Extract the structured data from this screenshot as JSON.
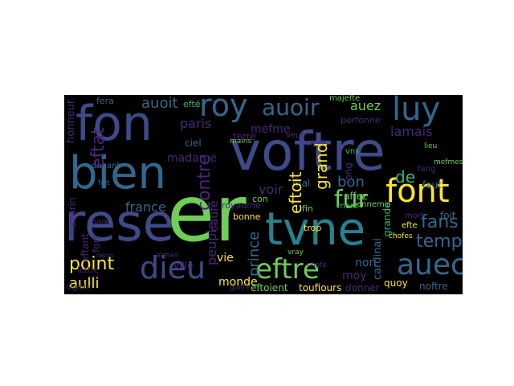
{
  "palette": {
    "background": "#000000",
    "page": "#ffffff",
    "violet": "#482878",
    "indigo": "#3e4a89",
    "blue": "#31688e",
    "teal": "#26828e",
    "green": "#35b779",
    "lime": "#6ece58",
    "yellow": "#fde725",
    "purple": "#440154"
  },
  "words": {
    "reserve_partial": "rese",
    "er": "er",
    "tvne": "tvne",
    "voftre": "voftre",
    "fon": "fon",
    "bien": "bien",
    "roy": "roy",
    "luy": "luy",
    "auoir": "auoir",
    "font": "font",
    "dieu": "dieu",
    "eftre": "eftre",
    "auec": "auec",
    "point": "point",
    "fur": "fur",
    "temps": "temps",
    "fans": "fans",
    "paris": "paris",
    "france": "france",
    "auoit": "auoit",
    "mefme": "mefme",
    "auez": "auez",
    "iamais": "iamais",
    "madame": "madame",
    "eftat": "eftat",
    "contre": "contre",
    "grand": "grand",
    "bon": "bon",
    "de": "de",
    "voir": "voir",
    "eftoit": "eftoit",
    "aulli": "aulli",
    "prince": "prince",
    "peuple": "peuple",
    "monde": "monde",
    "eftoient": "eftoient",
    "toufiours": "toufiours",
    "non": "non",
    "moy": "moy",
    "affez": "affez",
    "cardinal": "cardinal",
    "honneur": "honneur",
    "mazarin": "mazarin",
    "eftant": "eftant",
    "fort": "fort",
    "ville": "ville",
    "vie": "vie",
    "bonne": "bonne",
    "caufe": "caufe",
    "royaume": "royaume",
    "terre": "terre",
    "ciel": "ciel",
    "faut": "faut",
    "foit": "foit",
    "donner": "donner",
    "quoy": "quoy",
    "noftre": "noftre",
    "mal": "mal",
    "fera": "fera",
    "efte": "efte",
    "mort": "mort",
    "perfonne": "perfonne",
    "majefte": "majefte",
    "trop": "trop",
    "con": "con",
    "fin": "fin",
    "deuant": "deuant",
    "paix": "paix",
    "lettre": "lettre",
    "efprit": "efprit",
    "long": "long",
    "vns": "vns",
    "veut": "veut",
    "ment": "ment",
    "ennemis": "ennemis",
    "grande": "grande",
    "fang": "fang",
    "chofe": "chofe",
    "chofes": "chofes",
    "gloire": "gloire",
    "mains": "mains",
    "mefmes": "mefmes",
    "dignite": "dignite",
    "armes": "armes",
    "repos": "repos",
    "fait": "fait",
    "lieu": "lieu",
    "efté": "efté",
    "vray": "vray"
  }
}
